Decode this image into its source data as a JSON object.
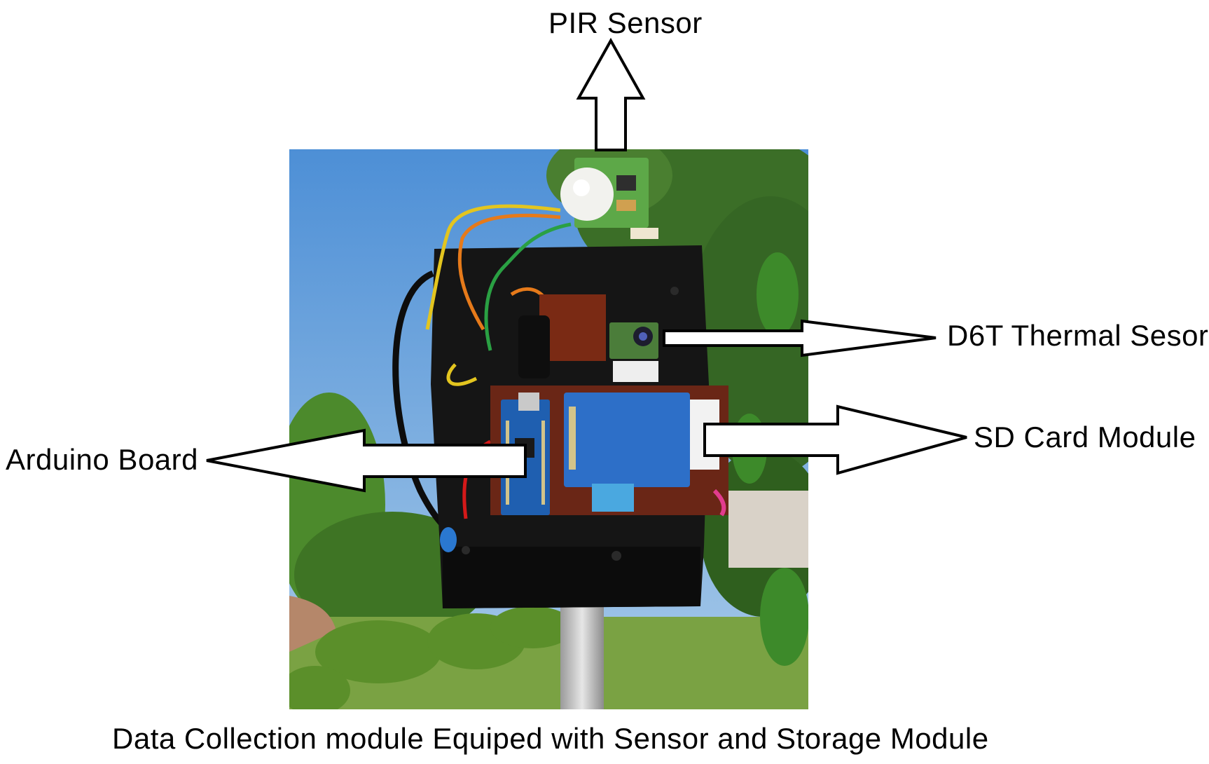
{
  "title": "Data Collection module Equiped with Sensor and Storage Module",
  "labels": {
    "pir": "PIR Sensor",
    "d6t": "D6T Thermal Sesor",
    "sd": "SD Card Module",
    "arduino": "Arduino Board"
  },
  "colors": {
    "sky": "#5f9ad6",
    "foliage": "#3f7a2a",
    "grass": "#7fa846",
    "enclosure": "#141414",
    "arduino_pcb": "#1f5fb0",
    "sd_pcb": "#2d6fc8",
    "pir_pcb": "#5da848",
    "arrow": "#000000"
  }
}
